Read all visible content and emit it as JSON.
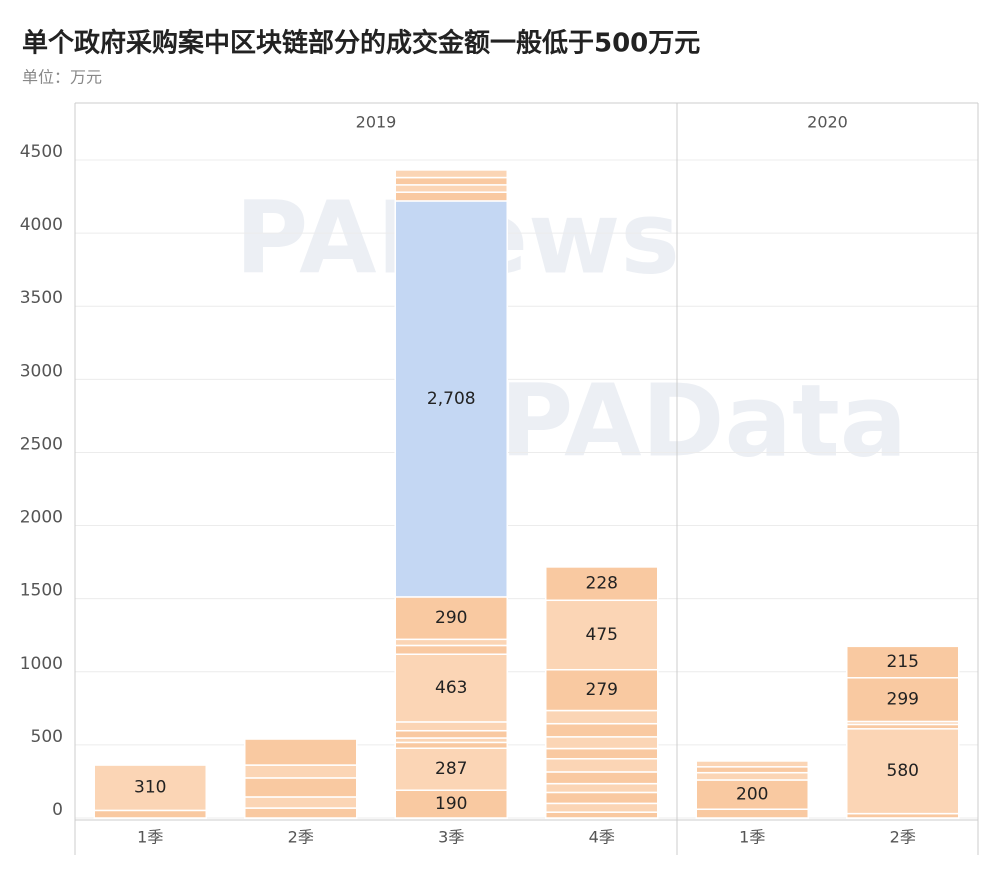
{
  "chart_data": {
    "type": "stacked-segments",
    "title": "单个政府采购案中区块链部分的成交金额一般低于500万元",
    "subtitle": "单位：万元",
    "watermarks": [
      "PANews",
      "PAData"
    ],
    "groups": [
      {
        "name": "2019",
        "categories": [
          "1季",
          "2季",
          "3季",
          "4季"
        ]
      },
      {
        "name": "2020",
        "categories": [
          "1季",
          "2季"
        ]
      }
    ],
    "stacks": [
      {
        "values": [
          52,
          310
        ],
        "value_labels": [
          null,
          "310"
        ],
        "colors": [
          "#f9c9a1",
          "#fbd5b5"
        ]
      },
      {
        "values": [
          68,
          76,
          130,
          88,
          178
        ],
        "value_labels": [
          null,
          null,
          null,
          null,
          null
        ],
        "colors": [
          "#f9c9a1",
          "#fbd5b5",
          "#f9c9a1",
          "#fbd5b5",
          "#f9c9a1"
        ]
      },
      {
        "values": [
          190,
          287,
          40,
          30,
          50,
          60,
          463,
          60,
          42,
          290,
          2708,
          60,
          50,
          50,
          52
        ],
        "value_labels": [
          "190",
          "287",
          null,
          null,
          null,
          null,
          "463",
          null,
          null,
          "290",
          "2,708",
          null,
          null,
          null,
          null
        ],
        "colors": [
          "#f9c9a1",
          "#fbd5b5",
          "#f9c9a1",
          "#fbd5b5",
          "#f9c9a1",
          "#fbd5b5",
          "#fbd5b5",
          "#f9c9a1",
          "#fbd5b5",
          "#f9c9a1",
          "#c4d7f3",
          "#f9c9a1",
          "#fbd5b5",
          "#f9c9a1",
          "#fbd5b5"
        ]
      },
      {
        "values": [
          40,
          60,
          75,
          60,
          80,
          90,
          70,
          80,
          90,
          90,
          279,
          475,
          228
        ],
        "value_labels": [
          null,
          null,
          null,
          null,
          null,
          null,
          null,
          null,
          null,
          null,
          "279",
          "475",
          "228"
        ],
        "colors": [
          "#f9c9a1",
          "#fbd5b5",
          "#f9c9a1",
          "#fbd5b5",
          "#f9c9a1",
          "#fbd5b5",
          "#f9c9a1",
          "#fbd5b5",
          "#f9c9a1",
          "#fbd5b5",
          "#f9c9a1",
          "#fbd5b5",
          "#f9c9a1"
        ]
      },
      {
        "values": [
          60,
          200,
          50,
          40,
          40
        ],
        "value_labels": [
          null,
          "200",
          null,
          null,
          null
        ],
        "colors": [
          "#f9c9a1",
          "#f9c9a1",
          "#fbd5b5",
          "#f9c9a1",
          "#fbd5b5"
        ]
      },
      {
        "values": [
          30,
          580,
          30,
          20,
          299,
          215
        ],
        "value_labels": [
          null,
          "580",
          null,
          null,
          "299",
          "215"
        ],
        "colors": [
          "#f9c9a1",
          "#fbd5b5",
          "#f9c9a1",
          "#fbd5b5",
          "#f9c9a1",
          "#f9c9a1"
        ]
      }
    ],
    "ylim": [
      0,
      4500
    ],
    "yticks": [
      0,
      500,
      1000,
      1500,
      2000,
      2500,
      3000,
      3500,
      4000,
      4500
    ],
    "grid": true
  }
}
